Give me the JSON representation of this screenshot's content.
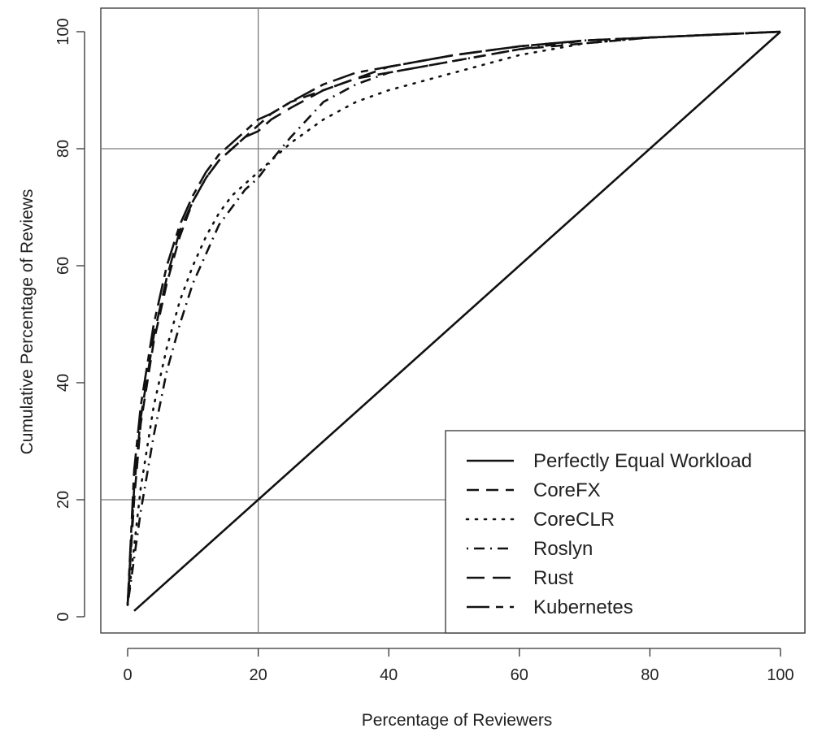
{
  "chart_data": {
    "type": "line",
    "title": "",
    "xlabel": "Percentage of Reviewers",
    "ylabel": "Cumulative Percentage of Reviews",
    "xlim": [
      0,
      100
    ],
    "ylim": [
      0,
      100
    ],
    "xticks": [
      0,
      20,
      40,
      60,
      80,
      100
    ],
    "yticks": [
      0,
      20,
      40,
      60,
      80,
      100
    ],
    "reference_lines": {
      "vertical_x": 20,
      "horizontal_y": [
        20,
        80
      ]
    },
    "grid": false,
    "legend_position": "bottom-right",
    "series": [
      {
        "name": "Perfectly Equal Workload",
        "dash": "solid",
        "x": [
          1,
          100
        ],
        "y": [
          1,
          100
        ]
      },
      {
        "name": "CoreFX",
        "dash": "dashed",
        "x": [
          0,
          1,
          2,
          4,
          6,
          8,
          10,
          12,
          14,
          16,
          18,
          20,
          22,
          25,
          30,
          35,
          40,
          50,
          60,
          70,
          80,
          90,
          100
        ],
        "y": [
          2,
          20,
          33,
          47,
          57,
          65,
          71,
          75,
          78,
          80,
          82,
          84,
          86,
          88,
          90,
          92,
          93,
          95,
          97,
          98,
          99,
          99.5,
          100
        ]
      },
      {
        "name": "CoreCLR",
        "dash": "dotted",
        "x": [
          0,
          1,
          2,
          4,
          6,
          8,
          10,
          12,
          14,
          16,
          18,
          20,
          22,
          25,
          30,
          35,
          40,
          50,
          60,
          70,
          80,
          90,
          100
        ],
        "y": [
          2,
          12,
          22,
          36,
          46,
          54,
          60,
          65,
          69,
          72,
          74,
          76,
          78,
          81,
          85,
          88,
          90,
          93,
          96,
          98,
          99,
          99.5,
          100
        ]
      },
      {
        "name": "Roslyn",
        "dash": "dash-dot",
        "x": [
          0,
          1,
          2,
          4,
          6,
          8,
          10,
          12,
          14,
          16,
          18,
          20,
          22,
          25,
          30,
          35,
          40,
          50,
          60,
          70,
          80,
          90,
          100
        ],
        "y": [
          2,
          10,
          18,
          31,
          42,
          50,
          57,
          62,
          67,
          70,
          73,
          75,
          78,
          82,
          88,
          91,
          93,
          95,
          97,
          98.5,
          99,
          99.5,
          100
        ]
      },
      {
        "name": "Rust",
        "dash": "long-dash",
        "x": [
          0,
          1,
          2,
          4,
          6,
          8,
          10,
          12,
          14,
          16,
          18,
          20,
          22,
          25,
          30,
          35,
          40,
          50,
          60,
          70,
          80,
          90,
          100
        ],
        "y": [
          2,
          22,
          34,
          48,
          58,
          66,
          71,
          75,
          78,
          80,
          82,
          83,
          85,
          87,
          90,
          92,
          94,
          96,
          97.5,
          98.5,
          99,
          99.5,
          100
        ]
      },
      {
        "name": "Kubernetes",
        "dash": "two-dash",
        "x": [
          0,
          1,
          2,
          4,
          6,
          8,
          10,
          12,
          14,
          16,
          18,
          20,
          22,
          25,
          30,
          35,
          40,
          50,
          60,
          70,
          80,
          90,
          100
        ],
        "y": [
          2,
          25,
          36,
          50,
          60,
          67,
          72,
          76,
          79,
          81,
          83,
          85,
          86,
          88,
          91,
          93,
          94,
          96,
          97.5,
          98.5,
          99,
          99.5,
          100
        ]
      }
    ]
  }
}
